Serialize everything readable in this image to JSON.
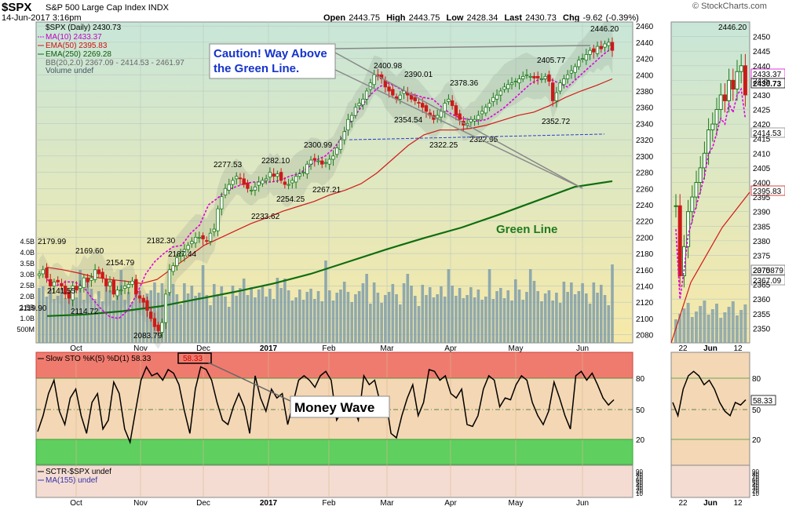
{
  "header": {
    "symbol": "$SPX",
    "name": "S&P 500 Large Cap Index",
    "exchange": "INDX",
    "datetime": "14-Jun-2017 3:16pm",
    "open_label": "Open",
    "open": "2443.75",
    "high_label": "High",
    "high": "2443.75",
    "low_label": "Low",
    "low": "2428.34",
    "last_label": "Last",
    "last": "2430.73",
    "chg_label": "Chg",
    "chg": "-9.62 (-0.39%)",
    "watermark": "© StockCharts.com"
  },
  "legend": {
    "price": "$SPX (Daily) 2430.73",
    "ma10": "MA(10) 2433.37",
    "ema50": "EMA(50) 2395.83",
    "ema250": "EMA(250) 2269.28",
    "bb": "BB(20,2.0) 2367.09 - 2414.53 - 2461.97",
    "volume": "Volume undef"
  },
  "colors": {
    "ma10": "#e000e0",
    "ema50": "#d11a1a",
    "ema250": "#0f6e0f",
    "up": "#1a7a1a",
    "down": "#cc1a1a",
    "volume": "#7f9eab",
    "overbought": "#ef7b6e",
    "oversold": "#5fcf5f"
  },
  "annotations": {
    "caution": "Caution! Way Above\nthe Green Line.",
    "green_line": "Green Line",
    "money_wave": "Money Wave"
  },
  "chart_data": [
    {
      "type": "line",
      "title": "$SPX (Daily)",
      "xlabel": "",
      "ylabel": "",
      "x_tick_labels": [
        "Oct",
        "Nov",
        "Dec",
        "2017",
        "Feb",
        "Mar",
        "Apr",
        "May",
        "Jun"
      ],
      "y_ticks": [
        2080,
        2100,
        2120,
        2140,
        2160,
        2180,
        2200,
        2220,
        2240,
        2260,
        2280,
        2300,
        2320,
        2340,
        2360,
        2380,
        2400,
        2420,
        2440,
        2460
      ],
      "ylim": [
        2070,
        2465
      ],
      "volume_ticks": [
        "500M",
        "1.0B",
        "1.5B",
        "2.0B",
        "2.5B",
        "3.0B",
        "3.5B",
        "4.0B",
        "4.5B"
      ],
      "close_path": [
        2155,
        2160,
        2150,
        2140,
        2145,
        2145,
        2140,
        2130,
        2125,
        2140,
        2135,
        2140,
        2150,
        2145,
        2150,
        2160,
        2155,
        2150,
        2140,
        2145,
        2130,
        2135,
        2135,
        2140,
        2142,
        2146,
        2130,
        2125,
        2120,
        2110,
        2100,
        2090,
        2085,
        2095,
        2130,
        2160,
        2165,
        2175,
        2180,
        2185,
        2190,
        2195,
        2200,
        2200,
        2198,
        2195,
        2205,
        2210,
        2235,
        2250,
        2260,
        2265,
        2270,
        2275,
        2272,
        2265,
        2260,
        2258,
        2262,
        2268,
        2270,
        2272,
        2280,
        2275,
        2278,
        2270,
        2265,
        2265,
        2270,
        2275,
        2278,
        2280,
        2290,
        2295,
        2295,
        2294,
        2290,
        2292,
        2296,
        2300,
        2310,
        2320,
        2330,
        2345,
        2350,
        2360,
        2365,
        2370,
        2380,
        2390,
        2400,
        2398,
        2395,
        2385,
        2380,
        2375,
        2370,
        2375,
        2380,
        2375,
        2370,
        2368,
        2365,
        2360,
        2355,
        2350,
        2345,
        2350,
        2355,
        2365,
        2370,
        2362,
        2350,
        2345,
        2338,
        2340,
        2345,
        2345,
        2350,
        2355,
        2360,
        2365,
        2372,
        2375,
        2380,
        2385,
        2388,
        2390,
        2392,
        2395,
        2398,
        2400,
        2398,
        2396,
        2396,
        2395,
        2398,
        2392,
        2368,
        2378,
        2390,
        2395,
        2400,
        2405,
        2410,
        2418,
        2420,
        2425,
        2430,
        2428,
        2435,
        2432,
        2438,
        2440,
        2430
      ],
      "series": [
        {
          "name": "MA(10)",
          "last": 2433.37,
          "values": [
            2148,
            2140,
            2145,
            2145,
            2140,
            2125,
            2112,
            2102,
            2100,
            2110,
            2130,
            2155,
            2170,
            2180,
            2188,
            2190,
            2205,
            2215,
            2240,
            2248,
            2258,
            2262,
            2266,
            2268,
            2268,
            2268,
            2270,
            2275,
            2278,
            2285,
            2295,
            2300,
            2310,
            2325,
            2345,
            2360,
            2375,
            2385,
            2390,
            2385,
            2378,
            2375,
            2372,
            2370,
            2360,
            2352,
            2347,
            2345,
            2343,
            2345,
            2352,
            2360,
            2370,
            2380,
            2390,
            2395,
            2395,
            2390,
            2385,
            2395,
            2405,
            2415,
            2425,
            2433
          ]
        },
        {
          "name": "EMA(50)",
          "last": 2395.83,
          "values": [
            2163,
            2160,
            2156,
            2151,
            2148,
            2146,
            2143,
            2148,
            2162,
            2176,
            2190,
            2199,
            2208,
            2217,
            2224,
            2232,
            2238,
            2244,
            2252,
            2258,
            2266,
            2279,
            2296,
            2313,
            2326,
            2332,
            2332,
            2334,
            2338,
            2344,
            2350,
            2354,
            2362,
            2372,
            2380,
            2387,
            2395
          ]
        },
        {
          "name": "EMA(250)",
          "last": 2269.28,
          "values": [
            2103,
            2105,
            2109,
            2115,
            2124,
            2133,
            2143,
            2155,
            2170,
            2185,
            2199,
            2212,
            2228,
            2245,
            2262,
            2269
          ]
        }
      ],
      "annotated_values": [
        "2179.99",
        "2169.60",
        "2154.79",
        "2141.55",
        "2119.90",
        "2114.72",
        "2083.79",
        "2182.30",
        "2187.44",
        "2277.53",
        "2282.10",
        "2233.62",
        "2254.25",
        "2267.21",
        "2300.99",
        "2400.98",
        "2390.01",
        "2354.54",
        "2322.25",
        "2378.36",
        "2322.95",
        "2405.77",
        "2352.72",
        "2446.20"
      ],
      "axis_value_labels": [
        "2433.37",
        "2430.73",
        "2414.53",
        "2395.83",
        "2367.09",
        "2075879"
      ],
      "inset": {
        "x_tick_labels": [
          "22",
          "Jun",
          "12"
        ],
        "y_ticks": [
          2350,
          2355,
          2360,
          2365,
          2370,
          2375,
          2380,
          2385,
          2390,
          2395,
          2400,
          2405,
          2410,
          2415,
          2420,
          2425,
          2430,
          2435,
          2440,
          2445,
          2450
        ],
        "ylim": [
          2345,
          2455
        ],
        "high_label": "2446.20"
      }
    },
    {
      "type": "line",
      "title": "Slow STO %K(5) %D(1) 58.33",
      "value_label": "58.33",
      "y_ticks": [
        20,
        50,
        80
      ],
      "ylim": [
        0,
        100
      ],
      "bands": {
        "overbought": 80,
        "oversold": 20
      },
      "x_tick_labels": [
        "Oct",
        "Nov",
        "Dec",
        "2017",
        "Feb",
        "Mar",
        "Apr",
        "May",
        "Jun"
      ],
      "values": [
        22,
        40,
        65,
        80,
        45,
        30,
        60,
        70,
        40,
        20,
        55,
        65,
        25,
        35,
        78,
        65,
        25,
        10,
        45,
        80,
        95,
        85,
        88,
        80,
        92,
        88,
        75,
        45,
        20,
        70,
        95,
        92,
        80,
        55,
        35,
        30,
        50,
        65,
        50,
        20,
        85,
        60,
        45,
        70,
        60,
        65,
        30,
        55,
        80,
        85,
        80,
        72,
        85,
        90,
        80,
        35,
        45,
        55,
        50,
        35,
        85,
        75,
        80,
        55,
        60,
        20,
        15,
        40,
        60,
        75,
        40,
        55,
        92,
        90,
        80,
        85,
        65,
        60,
        70,
        30,
        28,
        40,
        70,
        85,
        80,
        50,
        60,
        58,
        75,
        85,
        80,
        55,
        40,
        30,
        45,
        78,
        60,
        40,
        25,
        85,
        90,
        80,
        88,
        75,
        60,
        52,
        58
      ],
      "inset_values": [
        55,
        40,
        70,
        85,
        90,
        85,
        75,
        80,
        70,
        55,
        45,
        40,
        55,
        52,
        58
      ]
    },
    {
      "type": "line",
      "title": "SCTR-$SPX undef",
      "series_labels": [
        "SCTR-$SPX undef",
        "MA(155) undef"
      ],
      "y_tick_labels": [
        "90",
        "80",
        "70",
        "60",
        "50",
        "40",
        "30",
        "20",
        "10"
      ]
    }
  ]
}
